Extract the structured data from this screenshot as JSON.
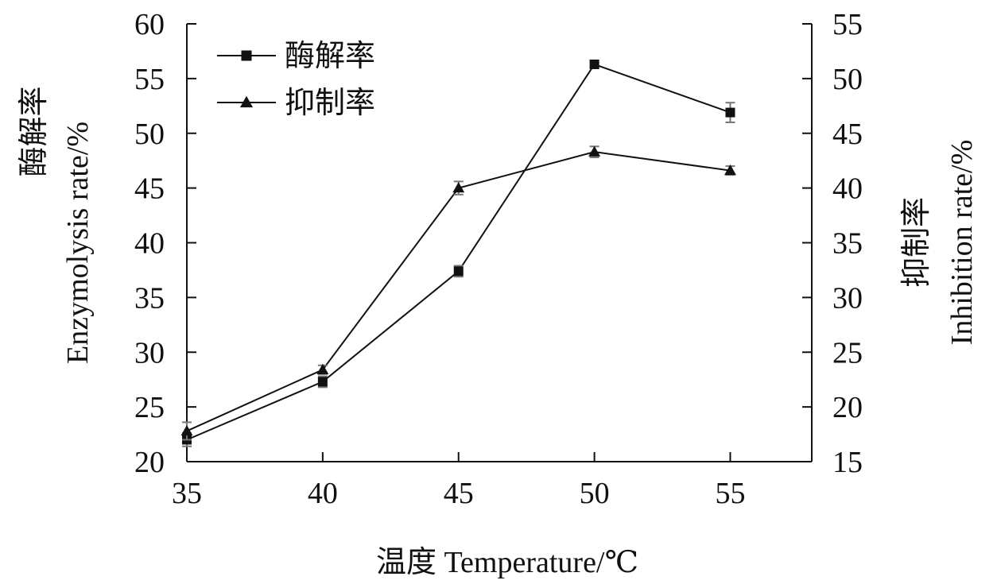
{
  "chart_data": {
    "type": "line",
    "x_axis": {
      "title": "温度 Temperature/℃",
      "ticks": [
        35,
        40,
        45,
        50,
        55
      ],
      "range": [
        35,
        58
      ]
    },
    "y_left": {
      "title_cn": "酶解率",
      "title_en": "Enzymolysis rate/%",
      "range": [
        20,
        60
      ],
      "ticks": [
        20,
        25,
        30,
        35,
        40,
        45,
        50,
        55,
        60
      ]
    },
    "y_right": {
      "title_cn": "抑制率",
      "title_en": "Inhibition rate/%",
      "range": [
        15,
        55
      ],
      "ticks": [
        15,
        20,
        25,
        30,
        35,
        40,
        45,
        50,
        55
      ]
    },
    "legend_position": "top-left",
    "grid": false,
    "series": [
      {
        "name": "酶解率",
        "axis": "left",
        "marker": "square",
        "x": [
          35,
          40,
          45,
          50,
          55
        ],
        "y": [
          22.0,
          27.3,
          37.4,
          56.3,
          51.9
        ],
        "error": [
          0.6,
          0.5,
          0.5,
          0.3,
          0.9
        ]
      },
      {
        "name": "抑制率",
        "axis": "right",
        "marker": "triangle",
        "x": [
          35,
          40,
          45,
          50,
          55
        ],
        "y": [
          17.8,
          23.4,
          40.0,
          43.3,
          41.6
        ],
        "error": [
          0.8,
          0.4,
          0.6,
          0.5,
          0.4
        ]
      }
    ]
  }
}
